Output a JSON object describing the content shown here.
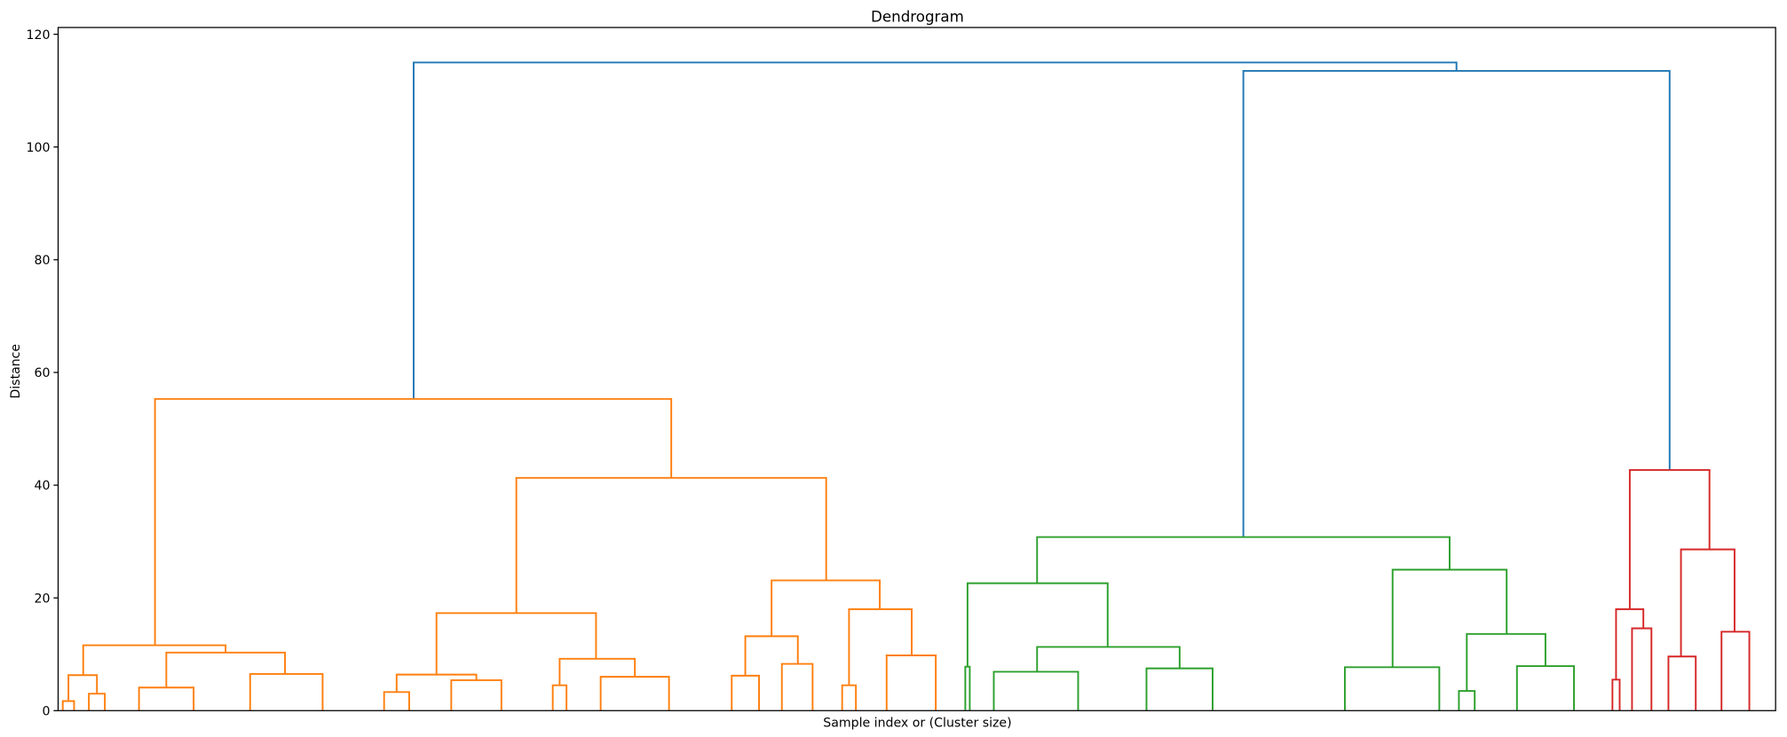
{
  "chart_data": {
    "type": "dendrogram",
    "title": "Dendrogram",
    "xlabel": "Sample index or (Cluster size)",
    "ylabel": "Distance",
    "ylim": [
      0,
      121.2
    ],
    "xlim": [
      0,
      1000
    ],
    "yticks": [
      0,
      20,
      40,
      60,
      80,
      100,
      120
    ],
    "grid": false,
    "colors": {
      "above_threshold": "#1f77b4",
      "cluster1": "#ff7f0e",
      "cluster2": "#2ca02c",
      "cluster3": "#d62728"
    },
    "links": [
      {
        "x": [
          207.0,
          814.2
        ],
        "height": 115.0,
        "child_heights": [
          55.3,
          113.5
        ],
        "color": "#1f77b4"
      },
      {
        "x": [
          690.1,
          938.3
        ],
        "height": 113.5,
        "child_heights": [
          30.8,
          42.7
        ],
        "color": "#1f77b4"
      },
      {
        "x": [
          56.4,
          357.0
        ],
        "height": 55.3,
        "child_heights": [
          11.6,
          41.3
        ],
        "color": "#ff7f0e"
      },
      {
        "x": [
          14.6,
          97.5
        ],
        "height": 11.6,
        "child_heights": [
          6.3,
          10.3
        ],
        "color": "#ff7f0e"
      },
      {
        "x": [
          6.0,
          22.6
        ],
        "height": 6.3,
        "child_heights": [
          1.7,
          3.0
        ],
        "color": "#ff7f0e"
      },
      {
        "x": [
          2.7,
          9.3
        ],
        "height": 1.7,
        "child_heights": [
          0,
          0
        ],
        "color": "#ff7f0e"
      },
      {
        "x": [
          17.9,
          27.2
        ],
        "height": 3.0,
        "child_heights": [
          0,
          0
        ],
        "color": "#ff7f0e"
      },
      {
        "x": [
          63.0,
          132.1
        ],
        "height": 10.3,
        "child_heights": [
          4.1,
          6.5
        ],
        "color": "#ff7f0e"
      },
      {
        "x": [
          47.1,
          78.9
        ],
        "height": 4.1,
        "child_heights": [
          0,
          0
        ],
        "color": "#ff7f0e"
      },
      {
        "x": [
          111.8,
          154.0
        ],
        "height": 6.5,
        "child_heights": [
          0,
          0
        ],
        "color": "#ff7f0e"
      },
      {
        "x": [
          266.8,
          447.2
        ],
        "height": 41.3,
        "child_heights": [
          17.3,
          23.1
        ],
        "color": "#ff7f0e"
      },
      {
        "x": [
          220.3,
          313.2
        ],
        "height": 17.3,
        "child_heights": [
          6.4,
          9.2
        ],
        "color": "#ff7f0e"
      },
      {
        "x": [
          197.1,
          243.5
        ],
        "height": 6.4,
        "child_heights": [
          3.3,
          5.4
        ],
        "color": "#ff7f0e"
      },
      {
        "x": [
          189.8,
          204.4
        ],
        "height": 3.3,
        "child_heights": [
          0,
          0
        ],
        "color": "#ff7f0e"
      },
      {
        "x": [
          228.9,
          258.1
        ],
        "height": 5.4,
        "child_heights": [
          0,
          0
        ],
        "color": "#ff7f0e"
      },
      {
        "x": [
          292.0,
          335.8
        ],
        "height": 9.2,
        "child_heights": [
          4.5,
          6.0
        ],
        "color": "#ff7f0e"
      },
      {
        "x": [
          288.0,
          296.0
        ],
        "height": 4.5,
        "child_heights": [
          0,
          0
        ],
        "color": "#ff7f0e"
      },
      {
        "x": [
          315.9,
          355.7
        ],
        "height": 6.0,
        "child_heights": [
          0,
          0
        ],
        "color": "#ff7f0e"
      },
      {
        "x": [
          415.4,
          478.4
        ],
        "height": 23.1,
        "child_heights": [
          13.2,
          18.0
        ],
        "color": "#ff7f0e"
      },
      {
        "x": [
          400.1,
          430.7
        ],
        "height": 13.2,
        "child_heights": [
          6.2,
          8.3
        ],
        "color": "#ff7f0e"
      },
      {
        "x": [
          392.2,
          408.1
        ],
        "height": 6.2,
        "child_heights": [
          0,
          0
        ],
        "color": "#ff7f0e"
      },
      {
        "x": [
          421.4,
          439.3
        ],
        "height": 8.3,
        "child_heights": [
          0,
          0
        ],
        "color": "#ff7f0e"
      },
      {
        "x": [
          460.5,
          497.0
        ],
        "height": 18.0,
        "child_heights": [
          4.5,
          9.8
        ],
        "color": "#ff7f0e"
      },
      {
        "x": [
          456.5,
          464.5
        ],
        "height": 4.5,
        "child_heights": [
          0,
          0
        ],
        "color": "#ff7f0e"
      },
      {
        "x": [
          482.4,
          511.0
        ],
        "height": 9.8,
        "child_heights": [
          0,
          0
        ],
        "color": "#ff7f0e"
      },
      {
        "x": [
          570.0,
          810.2
        ],
        "height": 30.8,
        "child_heights": [
          22.6,
          25.0
        ],
        "color": "#2ca02c"
      },
      {
        "x": [
          529.5,
          611.1
        ],
        "height": 22.6,
        "child_heights": [
          7.8,
          11.3
        ],
        "color": "#2ca02c"
      },
      {
        "x": [
          528.2,
          530.8
        ],
        "height": 7.8,
        "child_heights": [
          0,
          0
        ],
        "color": "#2ca02c"
      },
      {
        "x": [
          570.0,
          653.0
        ],
        "height": 11.3,
        "child_heights": [
          6.9,
          7.5
        ],
        "color": "#2ca02c"
      },
      {
        "x": [
          544.8,
          593.9
        ],
        "height": 6.9,
        "child_heights": [
          0,
          0
        ],
        "color": "#2ca02c"
      },
      {
        "x": [
          633.7,
          672.2
        ],
        "height": 7.5,
        "child_heights": [
          0,
          0
        ],
        "color": "#2ca02c"
      },
      {
        "x": [
          777.0,
          843.4
        ],
        "height": 25.0,
        "child_heights": [
          7.7,
          13.6
        ],
        "color": "#2ca02c"
      },
      {
        "x": [
          749.2,
          804.2
        ],
        "height": 7.7,
        "child_heights": [
          0,
          0
        ],
        "color": "#2ca02c"
      },
      {
        "x": [
          820.2,
          866.0
        ],
        "height": 13.6,
        "child_heights": [
          3.5,
          7.9
        ],
        "color": "#2ca02c"
      },
      {
        "x": [
          815.6,
          824.8
        ],
        "height": 3.5,
        "child_heights": [
          0,
          0
        ],
        "color": "#2ca02c"
      },
      {
        "x": [
          849.4,
          882.6
        ],
        "height": 7.9,
        "child_heights": [
          0,
          0
        ],
        "color": "#2ca02c"
      },
      {
        "x": [
          915.1,
          961.5
        ],
        "height": 42.7,
        "child_heights": [
          18.0,
          28.6
        ],
        "color": "#d62728"
      },
      {
        "x": [
          907.1,
          923.0
        ],
        "height": 18.0,
        "child_heights": [
          5.5,
          14.6
        ],
        "color": "#d62728"
      },
      {
        "x": [
          905.0,
          909.2
        ],
        "height": 5.5,
        "child_heights": [
          0,
          0
        ],
        "color": "#d62728"
      },
      {
        "x": [
          916.4,
          927.7
        ],
        "height": 14.6,
        "child_heights": [
          0,
          0
        ],
        "color": "#d62728"
      },
      {
        "x": [
          944.9,
          976.1
        ],
        "height": 28.6,
        "child_heights": [
          9.6,
          14.0
        ],
        "color": "#d62728"
      },
      {
        "x": [
          937.6,
          953.5
        ],
        "height": 9.6,
        "child_heights": [
          0,
          0
        ],
        "color": "#d62728"
      },
      {
        "x": [
          968.5,
          984.7
        ],
        "height": 14.0,
        "child_heights": [
          0,
          0
        ],
        "color": "#d62728"
      }
    ]
  }
}
